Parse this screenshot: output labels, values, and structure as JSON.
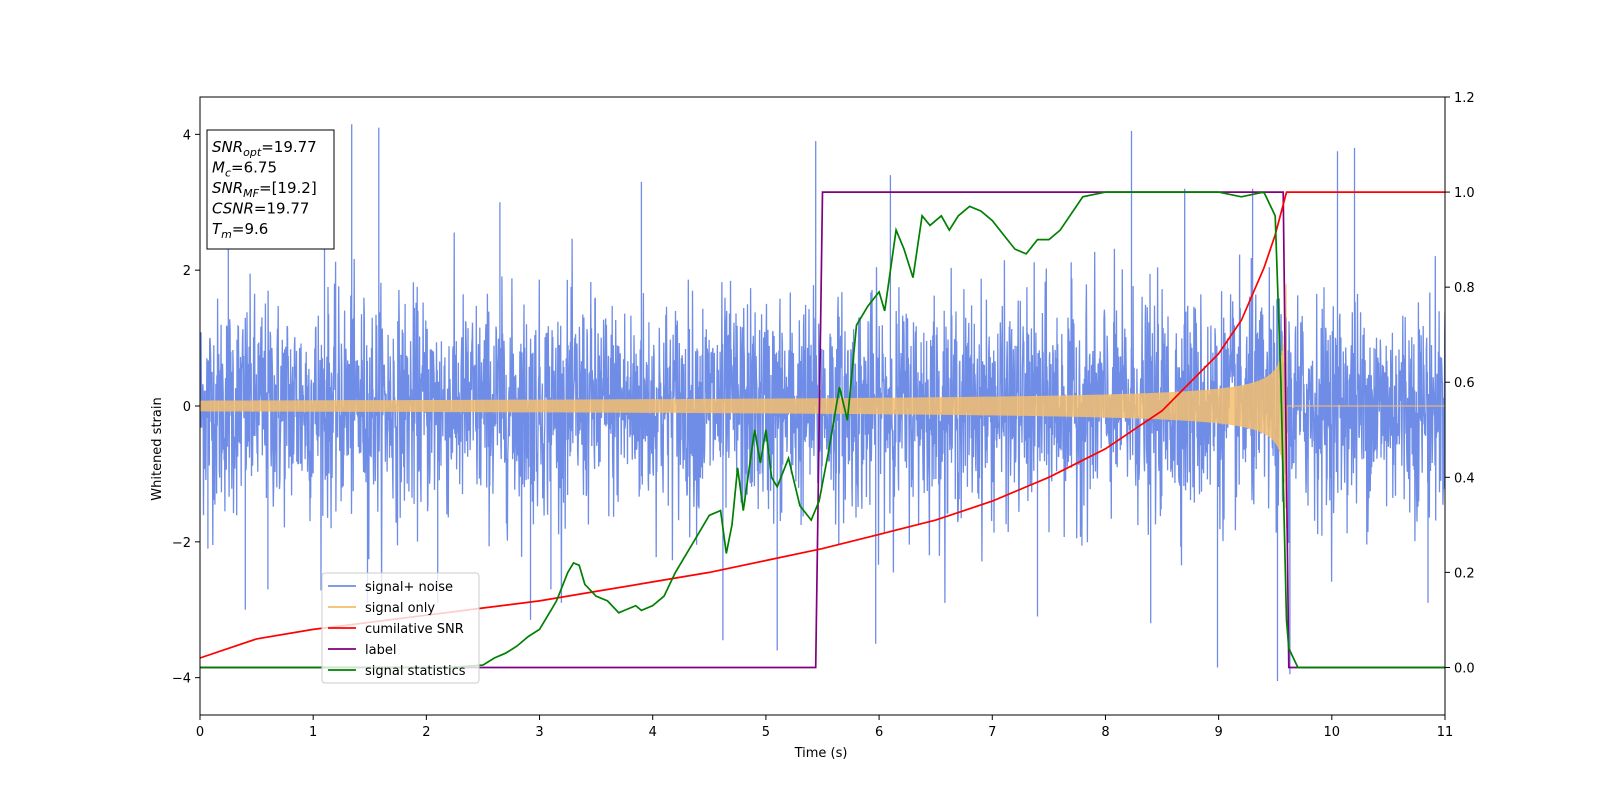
{
  "chart_data": {
    "type": "line",
    "xlabel": "Time (s)",
    "ylabel": "Whitened strain",
    "xlim": [
      0,
      11
    ],
    "ylim_left": [
      -4.55,
      4.55
    ],
    "ylim_right": [
      -0.1,
      1.2
    ],
    "x_ticks": [
      0,
      1,
      2,
      3,
      4,
      5,
      6,
      7,
      8,
      9,
      10,
      11
    ],
    "y_ticks_left": [
      -4,
      -2,
      0,
      2,
      4
    ],
    "y_ticks_right": [
      0.0,
      0.2,
      0.4,
      0.6,
      0.8,
      1.0,
      1.2
    ],
    "grid": false,
    "legend_position": "lower-left",
    "series": [
      {
        "name": "signal+ noise",
        "axis": "left",
        "color": "#6f8de6",
        "style": "dense noise, amplitude about ±1.8 with spikes to about ±4",
        "spikes": [
          [
            0.07,
            -2.1
          ],
          [
            0.25,
            3.1
          ],
          [
            0.4,
            -3.0
          ],
          [
            0.6,
            -2.7
          ],
          [
            1.1,
            3.2
          ],
          [
            1.34,
            4.15
          ],
          [
            1.48,
            -2.9
          ],
          [
            1.58,
            4.1
          ],
          [
            2.1,
            -2.9
          ],
          [
            2.65,
            3.0
          ],
          [
            2.92,
            -3.15
          ],
          [
            3.1,
            -2.7
          ],
          [
            3.9,
            3.3
          ],
          [
            4.62,
            -3.45
          ],
          [
            5.1,
            -3.6
          ],
          [
            5.44,
            3.9
          ],
          [
            5.97,
            -3.5
          ],
          [
            6.1,
            3.4
          ],
          [
            7.4,
            -3.1
          ],
          [
            8.23,
            4.05
          ],
          [
            8.4,
            -3.2
          ],
          [
            8.7,
            3.2
          ],
          [
            8.99,
            -3.85
          ],
          [
            9.3,
            3.2
          ],
          [
            9.52,
            -4.05
          ],
          [
            9.63,
            -3.95
          ],
          [
            10.05,
            3.75
          ],
          [
            10.2,
            3.8
          ],
          [
            10.85,
            -2.9
          ]
        ]
      },
      {
        "name": "signal only",
        "axis": "left",
        "color": "#f5be6e",
        "merger_time": 9.6,
        "amplitude_start": 0.08,
        "amplitude_end": 1.8
      },
      {
        "name": "cumilative SNR",
        "axis": "right",
        "color": "#ff0000",
        "x": [
          0,
          0.5,
          1,
          1.5,
          2,
          2.5,
          3,
          3.5,
          4,
          4.5,
          5,
          5.5,
          6,
          6.5,
          7,
          7.5,
          8,
          8.5,
          9,
          9.2,
          9.4,
          9.5,
          9.6,
          10,
          11
        ],
        "y": [
          0.02,
          0.06,
          0.08,
          0.095,
          0.11,
          0.125,
          0.14,
          0.16,
          0.18,
          0.2,
          0.225,
          0.25,
          0.28,
          0.31,
          0.35,
          0.4,
          0.46,
          0.54,
          0.66,
          0.73,
          0.84,
          0.91,
          1.0,
          1.0,
          1.0
        ]
      },
      {
        "name": "label",
        "axis": "right",
        "color": "#800080",
        "x": [
          0,
          5.44,
          5.5,
          9.57,
          9.62,
          11
        ],
        "y": [
          0,
          0,
          1,
          1,
          0,
          0
        ]
      },
      {
        "name": "signal statistics",
        "axis": "right",
        "color": "#008000",
        "x": [
          0,
          2.2,
          2.5,
          2.6,
          2.7,
          2.8,
          2.9,
          3.0,
          3.1,
          3.15,
          3.25,
          3.3,
          3.35,
          3.4,
          3.5,
          3.6,
          3.7,
          3.75,
          3.85,
          3.9,
          4.0,
          4.1,
          4.2,
          4.3,
          4.4,
          4.5,
          4.6,
          4.65,
          4.7,
          4.75,
          4.8,
          4.9,
          4.95,
          5.0,
          5.05,
          5.1,
          5.2,
          5.3,
          5.4,
          5.47,
          5.55,
          5.65,
          5.72,
          5.8,
          5.9,
          6.0,
          6.05,
          6.15,
          6.22,
          6.3,
          6.38,
          6.45,
          6.55,
          6.62,
          6.7,
          6.8,
          6.9,
          7.0,
          7.1,
          7.2,
          7.3,
          7.4,
          7.5,
          7.6,
          7.8,
          8.0,
          8.5,
          9.0,
          9.2,
          9.4,
          9.5,
          9.55,
          9.6,
          9.62,
          9.7,
          11
        ],
        "y": [
          0,
          0,
          0.005,
          0.02,
          0.03,
          0.045,
          0.065,
          0.08,
          0.12,
          0.14,
          0.2,
          0.22,
          0.215,
          0.175,
          0.15,
          0.14,
          0.115,
          0.12,
          0.13,
          0.12,
          0.13,
          0.15,
          0.2,
          0.24,
          0.28,
          0.32,
          0.33,
          0.24,
          0.3,
          0.42,
          0.33,
          0.5,
          0.43,
          0.5,
          0.4,
          0.38,
          0.44,
          0.34,
          0.31,
          0.35,
          0.45,
          0.59,
          0.52,
          0.72,
          0.76,
          0.79,
          0.75,
          0.92,
          0.88,
          0.82,
          0.95,
          0.93,
          0.95,
          0.92,
          0.95,
          0.97,
          0.96,
          0.94,
          0.91,
          0.88,
          0.87,
          0.9,
          0.9,
          0.92,
          0.99,
          1.0,
          1.0,
          1.0,
          0.99,
          1.0,
          0.95,
          0.6,
          0.1,
          0.04,
          0.0,
          0.0
        ]
      }
    ],
    "annotation": {
      "lines": [
        {
          "name": "SNR",
          "sub": "opt",
          "value": "=19.77"
        },
        {
          "name": "M",
          "sub": "c",
          "value": "=6.75"
        },
        {
          "name": "SNR",
          "sub": "MF",
          "value": "=[19.2]"
        },
        {
          "name": "CSNR",
          "sub": "",
          "value": "=19.77"
        },
        {
          "name": "T",
          "sub": "m",
          "value": "=9.6"
        }
      ]
    }
  }
}
